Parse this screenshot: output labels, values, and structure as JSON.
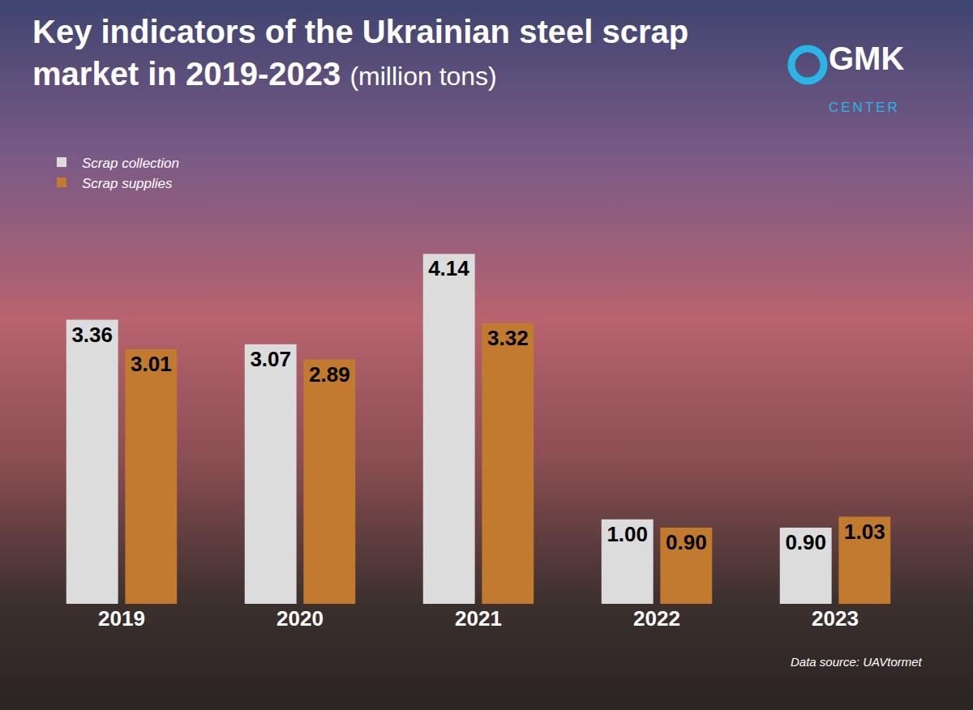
{
  "chart_data": {
    "type": "bar",
    "title": "Key indicators of the Ukrainian steel scrap market in 2019-2023",
    "subtitle": "(million tons)",
    "categories": [
      "2019",
      "2020",
      "2021",
      "2022",
      "2023"
    ],
    "series": [
      {
        "name": "Scrap collection",
        "color": "#dcdcdc",
        "values": [
          3.36,
          3.07,
          4.14,
          1.0,
          0.9
        ],
        "value_labels": [
          "3.36",
          "3.07",
          "4.14",
          "1.00",
          "0.90"
        ]
      },
      {
        "name": "Scrap supplies",
        "color": "#c27b2e",
        "values": [
          3.01,
          2.89,
          3.32,
          0.9,
          1.03
        ],
        "value_labels": [
          "3.01",
          "2.89",
          "3.32",
          "0.90",
          "1.03"
        ]
      }
    ],
    "ylim": [
      0,
      5.8
    ],
    "grid": false,
    "legend": "upper left",
    "data_labels": true,
    "tick_labels": "x",
    "annotations": [
      "GMK CENTER",
      "Data source: UAVtormet"
    ]
  }
}
